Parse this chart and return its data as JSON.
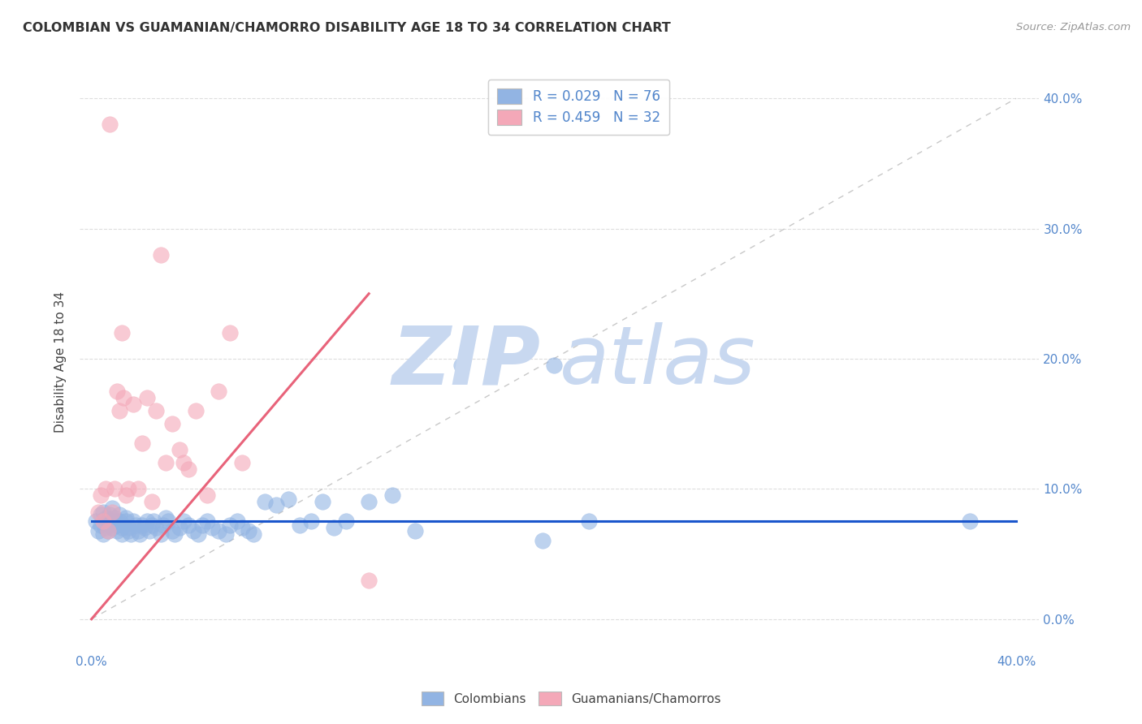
{
  "title": "COLOMBIAN VS GUAMANIAN/CHAMORRO DISABILITY AGE 18 TO 34 CORRELATION CHART",
  "source": "Source: ZipAtlas.com",
  "ylabel": "Disability Age 18 to 34",
  "ytick_vals": [
    0.0,
    0.1,
    0.2,
    0.3,
    0.4
  ],
  "ytick_labels": [
    "0.0%",
    "10.0%",
    "20.0%",
    "30.0%",
    "40.0%"
  ],
  "xtick_vals": [
    0.0,
    0.1,
    0.2,
    0.3,
    0.4
  ],
  "xtick_labels": [
    "0.0%",
    "",
    "",
    "",
    "40.0%"
  ],
  "xlim": [
    -0.005,
    0.41
  ],
  "ylim": [
    -0.025,
    0.42
  ],
  "legend_r1": "R = 0.029",
  "legend_n1": "N = 76",
  "legend_r2": "R = 0.459",
  "legend_n2": "N = 32",
  "colombian_color": "#92b4e3",
  "guamanian_color": "#f4a8b8",
  "regression_line_color_col": "#1a56cc",
  "regression_line_color_gua": "#e8637a",
  "diagonal_color": "#c8c8c8",
  "background_color": "#ffffff",
  "watermark_zip": "ZIP",
  "watermark_atlas": "atlas",
  "watermark_color": "#c8d8f0",
  "tick_color": "#5588cc",
  "colombians_x": [
    0.002,
    0.003,
    0.004,
    0.004,
    0.005,
    0.005,
    0.006,
    0.006,
    0.007,
    0.007,
    0.008,
    0.008,
    0.009,
    0.009,
    0.01,
    0.01,
    0.011,
    0.011,
    0.012,
    0.012,
    0.013,
    0.013,
    0.014,
    0.015,
    0.015,
    0.016,
    0.016,
    0.017,
    0.018,
    0.019,
    0.02,
    0.021,
    0.022,
    0.023,
    0.024,
    0.025,
    0.026,
    0.027,
    0.028,
    0.03,
    0.031,
    0.032,
    0.033,
    0.035,
    0.036,
    0.038,
    0.04,
    0.042,
    0.044,
    0.046,
    0.048,
    0.05,
    0.052,
    0.055,
    0.058,
    0.06,
    0.063,
    0.065,
    0.068,
    0.07,
    0.075,
    0.08,
    0.085,
    0.09,
    0.095,
    0.1,
    0.105,
    0.11,
    0.12,
    0.13,
    0.14,
    0.16,
    0.195,
    0.2,
    0.215,
    0.38
  ],
  "colombians_y": [
    0.075,
    0.068,
    0.072,
    0.08,
    0.065,
    0.082,
    0.07,
    0.078,
    0.075,
    0.068,
    0.08,
    0.072,
    0.085,
    0.07,
    0.078,
    0.075,
    0.072,
    0.068,
    0.08,
    0.075,
    0.07,
    0.065,
    0.072,
    0.078,
    0.075,
    0.07,
    0.068,
    0.065,
    0.075,
    0.072,
    0.068,
    0.065,
    0.072,
    0.07,
    0.075,
    0.068,
    0.072,
    0.075,
    0.07,
    0.065,
    0.072,
    0.078,
    0.075,
    0.068,
    0.065,
    0.07,
    0.075,
    0.072,
    0.068,
    0.065,
    0.072,
    0.075,
    0.07,
    0.068,
    0.065,
    0.072,
    0.075,
    0.07,
    0.068,
    0.065,
    0.09,
    0.088,
    0.092,
    0.072,
    0.075,
    0.09,
    0.07,
    0.075,
    0.09,
    0.095,
    0.068,
    0.195,
    0.06,
    0.195,
    0.075,
    0.075
  ],
  "guamanians_x": [
    0.003,
    0.004,
    0.005,
    0.006,
    0.007,
    0.008,
    0.009,
    0.01,
    0.011,
    0.012,
    0.013,
    0.014,
    0.015,
    0.016,
    0.018,
    0.02,
    0.022,
    0.024,
    0.026,
    0.028,
    0.03,
    0.032,
    0.035,
    0.038,
    0.04,
    0.042,
    0.045,
    0.05,
    0.055,
    0.06,
    0.065,
    0.12
  ],
  "guamanians_y": [
    0.082,
    0.095,
    0.075,
    0.1,
    0.068,
    0.38,
    0.082,
    0.1,
    0.175,
    0.16,
    0.22,
    0.17,
    0.095,
    0.1,
    0.165,
    0.1,
    0.135,
    0.17,
    0.09,
    0.16,
    0.28,
    0.12,
    0.15,
    0.13,
    0.12,
    0.115,
    0.16,
    0.095,
    0.175,
    0.22,
    0.12,
    0.03
  ]
}
